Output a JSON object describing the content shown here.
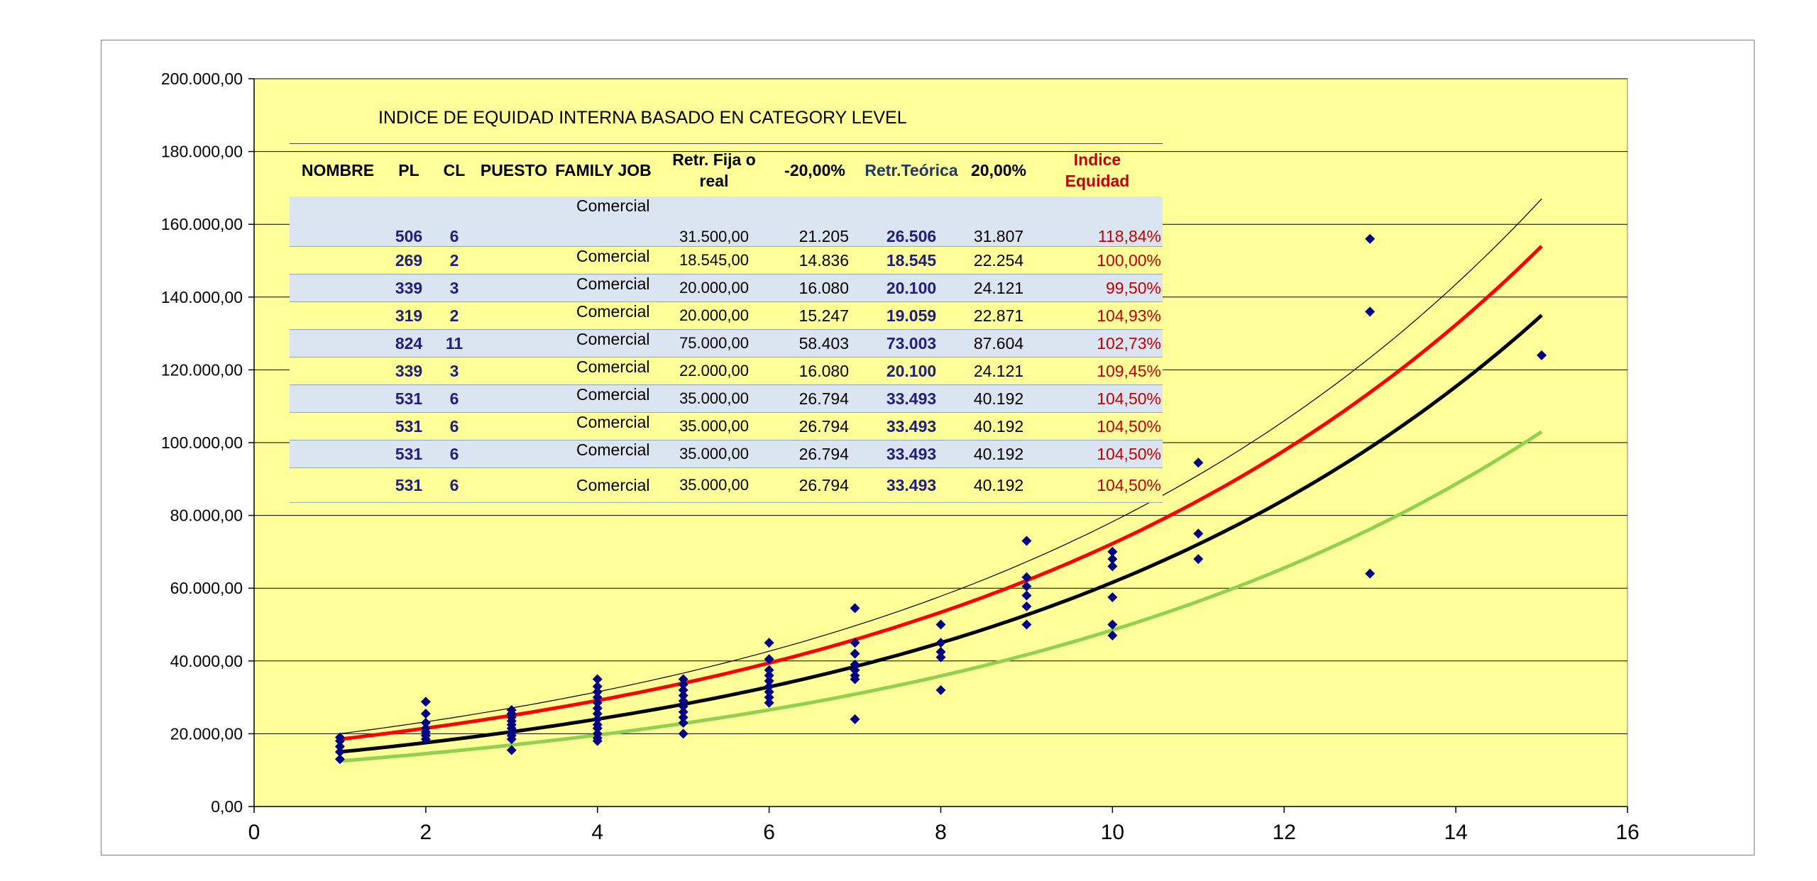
{
  "chart_data": {
    "type": "scatter",
    "title": "",
    "xlabel": "",
    "ylabel": "",
    "xlim": [
      0,
      16
    ],
    "ylim": [
      0,
      200000
    ],
    "xticks": [
      "0",
      "2",
      "4",
      "6",
      "8",
      "10",
      "12",
      "14",
      "16"
    ],
    "yticks": [
      "0,00",
      "20.000,00",
      "40.000,00",
      "60.000,00",
      "80.000,00",
      "100.000,00",
      "120.000,00",
      "140.000,00",
      "160.000,00",
      "180.000,00",
      "200.000,00"
    ],
    "grid": "horizontal",
    "plot_background": "#ffff99",
    "points": [
      [
        1,
        13000
      ],
      [
        1,
        15000
      ],
      [
        1,
        16500
      ],
      [
        1,
        18000
      ],
      [
        1,
        19000
      ],
      [
        2,
        18500
      ],
      [
        2,
        19500
      ],
      [
        2,
        20500
      ],
      [
        2,
        21500
      ],
      [
        2,
        23000
      ],
      [
        2,
        25500
      ],
      [
        2,
        28800
      ],
      [
        3,
        15500
      ],
      [
        3,
        18500
      ],
      [
        3,
        19500
      ],
      [
        3,
        20500
      ],
      [
        3,
        21500
      ],
      [
        3,
        22500
      ],
      [
        3,
        23500
      ],
      [
        3,
        24500
      ],
      [
        3,
        25500
      ],
      [
        3,
        26500
      ],
      [
        4,
        18000
      ],
      [
        4,
        18800
      ],
      [
        4,
        20000
      ],
      [
        4,
        21500
      ],
      [
        4,
        22500
      ],
      [
        4,
        24000
      ],
      [
        4,
        25500
      ],
      [
        4,
        27000
      ],
      [
        4,
        28500
      ],
      [
        4,
        30000
      ],
      [
        4,
        31500
      ],
      [
        4,
        33000
      ],
      [
        4,
        35000
      ],
      [
        5,
        20000
      ],
      [
        5,
        23000
      ],
      [
        5,
        24500
      ],
      [
        5,
        26000
      ],
      [
        5,
        27500
      ],
      [
        5,
        29000
      ],
      [
        5,
        30500
      ],
      [
        5,
        32000
      ],
      [
        5,
        33500
      ],
      [
        5,
        35000
      ],
      [
        6,
        28500
      ],
      [
        6,
        30000
      ],
      [
        6,
        31500
      ],
      [
        6,
        33000
      ],
      [
        6,
        34500
      ],
      [
        6,
        36000
      ],
      [
        6,
        37500
      ],
      [
        6,
        40500
      ],
      [
        6,
        45000
      ],
      [
        7,
        24000
      ],
      [
        7,
        35000
      ],
      [
        7,
        36000
      ],
      [
        7,
        37500
      ],
      [
        7,
        39000
      ],
      [
        7,
        42000
      ],
      [
        7,
        45000
      ],
      [
        7,
        54500
      ],
      [
        8,
        32000
      ],
      [
        8,
        41000
      ],
      [
        8,
        42500
      ],
      [
        8,
        45000
      ],
      [
        8,
        50000
      ],
      [
        9,
        50000
      ],
      [
        9,
        55000
      ],
      [
        9,
        58000
      ],
      [
        9,
        60500
      ],
      [
        9,
        63000
      ],
      [
        9,
        73000
      ],
      [
        10,
        47000
      ],
      [
        10,
        50000
      ],
      [
        10,
        57500
      ],
      [
        10,
        66000
      ],
      [
        10,
        68000
      ],
      [
        10,
        70000
      ],
      [
        11,
        68000
      ],
      [
        11,
        75000
      ],
      [
        11,
        94500
      ],
      [
        13,
        64000
      ],
      [
        13,
        136000
      ],
      [
        13,
        156000
      ],
      [
        15,
        124000
      ]
    ],
    "series": [
      {
        "color": "#000000",
        "style": "thick",
        "x_range": [
          1,
          15
        ],
        "y_start": 15000,
        "y_end": 135000
      },
      {
        "color": "#ff0000",
        "style": "thick",
        "x_range": [
          1,
          15
        ],
        "y_start": 18500,
        "y_end": 154000
      },
      {
        "color": "#92d050",
        "style": "thick",
        "x_range": [
          1,
          15
        ],
        "y_start": 12500,
        "y_end": 103000
      },
      {
        "color": "#000000",
        "style": "thin",
        "x_range": [
          1,
          15
        ],
        "y_start": 20000,
        "y_end": 167000
      }
    ],
    "point_color": "#000080"
  },
  "table": {
    "title": "INDICE DE EQUIDAD INTERNA BASADO EN CATEGORY LEVEL",
    "headers": {
      "nombre": "NOMBRE",
      "pl": "PL",
      "cl": "CL",
      "puesto": "PUESTO",
      "family": "FAMILY JOB",
      "real_line1": "Retr. Fija o",
      "real_line2": "real",
      "minus": "-20,00%",
      "teorica": "Retr.Teórica",
      "plus": "20,00%",
      "indice_line1": "Indice",
      "indice_line2": "Equidad"
    },
    "rows": [
      {
        "nombre": "",
        "pl": "506",
        "cl": "6",
        "puesto": "",
        "family": "Comercial",
        "real": "31.500,00",
        "minus": "21.205",
        "teorica": "26.506",
        "plus": "31.807",
        "indice": "118,84%"
      },
      {
        "nombre": "",
        "pl": "269",
        "cl": "2",
        "puesto": "",
        "family": "Comercial",
        "real": "18.545,00",
        "minus": "14.836",
        "teorica": "18.545",
        "plus": "22.254",
        "indice": "100,00%"
      },
      {
        "nombre": "",
        "pl": "339",
        "cl": "3",
        "puesto": "",
        "family": "Comercial",
        "real": "20.000,00",
        "minus": "16.080",
        "teorica": "20.100",
        "plus": "24.121",
        "indice": "99,50%"
      },
      {
        "nombre": "",
        "pl": "319",
        "cl": "2",
        "puesto": "",
        "family": "Comercial",
        "real": "20.000,00",
        "minus": "15.247",
        "teorica": "19.059",
        "plus": "22.871",
        "indice": "104,93%"
      },
      {
        "nombre": "",
        "pl": "824",
        "cl": "11",
        "puesto": "",
        "family": "Comercial",
        "real": "75.000,00",
        "minus": "58.403",
        "teorica": "73.003",
        "plus": "87.604",
        "indice": "102,73%"
      },
      {
        "nombre": "",
        "pl": "339",
        "cl": "3",
        "puesto": "",
        "family": "Comercial",
        "real": "22.000,00",
        "minus": "16.080",
        "teorica": "20.100",
        "plus": "24.121",
        "indice": "109,45%"
      },
      {
        "nombre": "",
        "pl": "531",
        "cl": "6",
        "puesto": "",
        "family": "Comercial",
        "real": "35.000,00",
        "minus": "26.794",
        "teorica": "33.493",
        "plus": "40.192",
        "indice": "104,50%"
      },
      {
        "nombre": "",
        "pl": "531",
        "cl": "6",
        "puesto": "",
        "family": "Comercial",
        "real": "35.000,00",
        "minus": "26.794",
        "teorica": "33.493",
        "plus": "40.192",
        "indice": "104,50%"
      },
      {
        "nombre": "",
        "pl": "531",
        "cl": "6",
        "puesto": "",
        "family": "Comercial",
        "real": "35.000,00",
        "minus": "26.794",
        "teorica": "33.493",
        "plus": "40.192",
        "indice": "104,50%"
      },
      {
        "nombre": "",
        "pl": "531",
        "cl": "6",
        "puesto": "",
        "family": "Comercial",
        "real": "35.000,00",
        "minus": "26.794",
        "teorica": "33.493",
        "plus": "40.192",
        "indice": "104,50%"
      }
    ]
  }
}
